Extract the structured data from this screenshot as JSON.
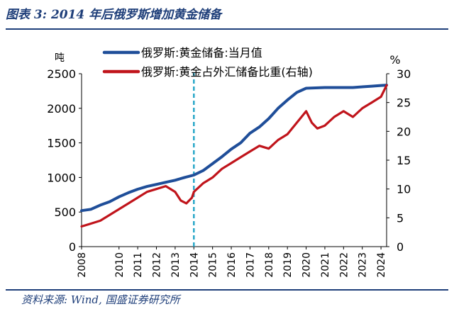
{
  "title": "图表 3:  2014 年后俄罗斯增加黄金储备",
  "source": "资料来源:  Wind,  国盛证券研究所",
  "chart_data": {
    "type": "line",
    "left_axis": {
      "unit_label": "吨",
      "min": 0,
      "max": 2500,
      "ticks": [
        0,
        500,
        1000,
        1500,
        2000,
        2500
      ]
    },
    "right_axis": {
      "unit_label": "%",
      "min": 0,
      "max": 30,
      "ticks": [
        0,
        5,
        10,
        15,
        20,
        25,
        30
      ]
    },
    "x_range": [
      2008,
      2024.3
    ],
    "x_ticks": [
      2008,
      2010,
      2011,
      2012,
      2013,
      2014,
      2015,
      2016,
      2017,
      2018,
      2019,
      2020,
      2021,
      2022,
      2023,
      2024
    ],
    "reference_line_x": 2014,
    "legend_position": "top-left",
    "series": [
      {
        "name": "俄罗斯:黄金储备:当月值",
        "axis": "left",
        "color": "#1f4e99",
        "x": [
          2008.0,
          2008.5,
          2009.0,
          2009.5,
          2010.0,
          2010.5,
          2011.0,
          2011.5,
          2012.0,
          2012.5,
          2013.0,
          2013.5,
          2014.0,
          2014.5,
          2015.0,
          2015.5,
          2016.0,
          2016.5,
          2017.0,
          2017.5,
          2018.0,
          2018.5,
          2019.0,
          2019.5,
          2020.0,
          2020.5,
          2021.0,
          2021.5,
          2022.0,
          2022.5,
          2023.0,
          2023.5,
          2024.0,
          2024.3
        ],
        "values": [
          520,
          540,
          600,
          650,
          720,
          780,
          830,
          870,
          900,
          930,
          960,
          1000,
          1035,
          1100,
          1200,
          1300,
          1410,
          1500,
          1640,
          1730,
          1850,
          2000,
          2120,
          2230,
          2290,
          2295,
          2300,
          2300,
          2300,
          2300,
          2310,
          2320,
          2330,
          2335
        ]
      },
      {
        "name": "俄罗斯:黄金占外汇储备比重(右轴)",
        "axis": "right",
        "color": "#c0141b",
        "x": [
          2008.0,
          2008.5,
          2009.0,
          2009.5,
          2010.0,
          2010.5,
          2011.0,
          2011.5,
          2012.0,
          2012.5,
          2013.0,
          2013.3,
          2013.6,
          2013.9,
          2014.0,
          2014.5,
          2015.0,
          2015.5,
          2016.0,
          2016.5,
          2017.0,
          2017.5,
          2018.0,
          2018.5,
          2019.0,
          2019.5,
          2020.0,
          2020.3,
          2020.6,
          2021.0,
          2021.5,
          2022.0,
          2022.5,
          2023.0,
          2023.5,
          2024.0,
          2024.3
        ],
        "values": [
          3.5,
          4.0,
          4.5,
          5.5,
          6.5,
          7.5,
          8.5,
          9.5,
          10.0,
          10.5,
          9.5,
          8.0,
          7.5,
          8.5,
          9.5,
          11.0,
          12.0,
          13.5,
          14.5,
          15.5,
          16.5,
          17.5,
          17.0,
          18.5,
          19.5,
          21.5,
          23.5,
          21.5,
          20.5,
          21.0,
          22.5,
          23.5,
          22.5,
          24.0,
          25.0,
          26.0,
          28.0
        ]
      }
    ]
  }
}
